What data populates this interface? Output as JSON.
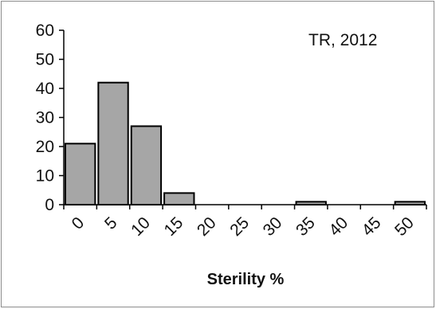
{
  "chart_data": {
    "type": "bar",
    "categories": [
      "0",
      "5",
      "10",
      "15",
      "20",
      "25",
      "30",
      "35",
      "40",
      "45",
      "50"
    ],
    "values": [
      21,
      42,
      27,
      4,
      0,
      0,
      0,
      1,
      0,
      0,
      1
    ],
    "annotation": "TR, 2012",
    "xlabel": "Sterility %",
    "ylabel": "",
    "ylim": [
      0,
      60
    ],
    "yticks": [
      "0",
      "10",
      "20",
      "30",
      "40",
      "50",
      "60"
    ],
    "grid": false,
    "colors": {
      "bar_fill": "#a6a6a6",
      "bar_edge": "#000000"
    }
  }
}
